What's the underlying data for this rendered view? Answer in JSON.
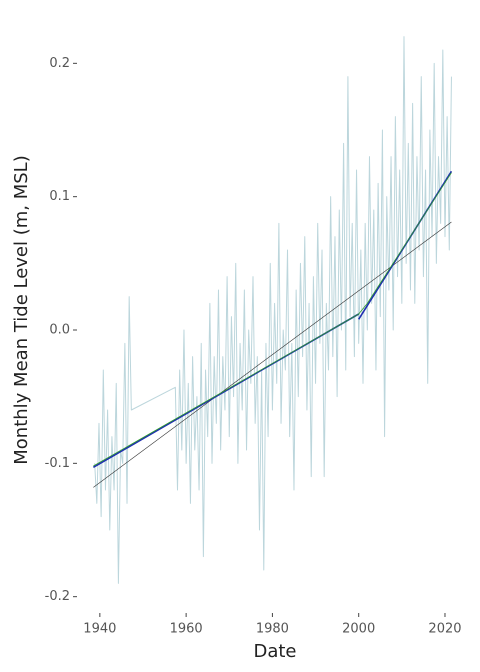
{
  "chart_data": {
    "type": "line",
    "xlabel": "Date",
    "ylabel": "Monthly Mean Tide Level (m, MSL)",
    "xlim": [
      1935.4,
      2025.8
    ],
    "xticks": [
      1940,
      1960,
      1980,
      2000,
      2020
    ],
    "ylim": [
      -0.21,
      0.225
    ],
    "yticks": [
      -0.2,
      -0.1,
      {
        "value": 0,
        "label": "0.0"
      },
      0.1,
      0.2
    ],
    "grid": false,
    "series": [
      {
        "color": "#bcd6dc",
        "width": 1,
        "x": [
          1938.8,
          1939.3,
          1939.8,
          1940.3,
          1940.8,
          1941.3,
          1941.8,
          1942.3,
          1942.8,
          1943.3,
          1943.8,
          1944.3,
          1944.8,
          1945.3,
          1945.8,
          1946.3,
          1946.8,
          1947.3,
          1957.5,
          1958,
          1958.5,
          1959,
          1959.5,
          1960,
          1960.5,
          1961,
          1961.5,
          1962,
          1962.5,
          1963,
          1963.5,
          1964,
          1964.5,
          1965,
          1965.5,
          1966,
          1966.5,
          1967,
          1967.5,
          1968,
          1968.5,
          1969,
          1969.5,
          1970,
          1970.5,
          1971,
          1971.5,
          1972,
          1972.5,
          1973,
          1973.5,
          1974,
          1974.5,
          1975,
          1975.5,
          1976,
          1976.5,
          1977,
          1977.5,
          1978,
          1978.5,
          1979,
          1979.5,
          1980,
          1980.5,
          1981,
          1981.5,
          1982,
          1982.5,
          1983,
          1983.5,
          1984,
          1984.5,
          1985,
          1985.5,
          1986,
          1986.5,
          1987,
          1987.5,
          1988,
          1988.5,
          1989,
          1989.5,
          1990,
          1990.5,
          1991,
          1991.5,
          1992,
          1992.5,
          1993,
          1993.5,
          1994,
          1994.5,
          1995,
          1995.5,
          1996,
          1996.5,
          1997,
          1997.5,
          1998,
          1998.5,
          1999,
          1999.5,
          2000,
          2000.5,
          2001,
          2001.5,
          2002,
          2002.5,
          2003,
          2003.5,
          2004,
          2004.5,
          2005,
          2005.5,
          2006,
          2006.5,
          2007,
          2007.5,
          2008,
          2008.5,
          2009,
          2009.5,
          2010,
          2010.5,
          2011,
          2011.5,
          2012,
          2012.5,
          2013,
          2013.5,
          2014,
          2014.5,
          2015,
          2015.5,
          2016,
          2016.5,
          2017,
          2017.5,
          2018,
          2018.5,
          2019,
          2019.5,
          2020,
          2020.5,
          2021,
          2021.5
        ],
        "values": [
          -0.1,
          -0.13,
          -0.07,
          -0.14,
          -0.03,
          -0.12,
          -0.06,
          -0.15,
          -0.08,
          -0.12,
          -0.04,
          -0.19,
          -0.09,
          -0.1,
          -0.01,
          -0.13,
          0.025,
          -0.06,
          -0.043,
          -0.12,
          -0.03,
          -0.09,
          0.0,
          -0.1,
          -0.04,
          -0.13,
          -0.02,
          -0.09,
          -0.05,
          -0.12,
          -0.01,
          -0.17,
          -0.03,
          -0.08,
          0.02,
          -0.1,
          -0.02,
          -0.07,
          0.03,
          -0.09,
          -0.02,
          -0.06,
          0.04,
          -0.08,
          0.01,
          -0.05,
          0.05,
          -0.1,
          -0.01,
          -0.06,
          0.03,
          -0.09,
          0.0,
          -0.04,
          0.04,
          -0.07,
          -0.02,
          -0.15,
          -0.03,
          -0.18,
          -0.01,
          -0.08,
          0.05,
          -0.06,
          0.02,
          -0.04,
          0.08,
          -0.07,
          0.0,
          -0.03,
          0.06,
          -0.08,
          -0.01,
          -0.12,
          0.03,
          -0.05,
          0.05,
          -0.02,
          0.07,
          -0.06,
          0.02,
          -0.11,
          0.04,
          -0.04,
          0.08,
          -0.01,
          0.06,
          -0.11,
          0.02,
          -0.03,
          0.1,
          -0.02,
          0.07,
          -0.05,
          0.09,
          0.0,
          0.14,
          -0.03,
          0.19,
          0.01,
          0.08,
          -0.02,
          0.12,
          -0.01,
          0.06,
          -0.04,
          0.08,
          0.0,
          0.13,
          0.02,
          0.09,
          -0.03,
          0.11,
          0.01,
          0.15,
          -0.08,
          0.1,
          0.03,
          0.13,
          0.0,
          0.16,
          0.04,
          0.12,
          0.02,
          0.22,
          0.05,
          0.14,
          0.03,
          0.17,
          0.02,
          0.13,
          0.06,
          0.19,
          0.04,
          0.12,
          -0.04,
          0.15,
          0.07,
          0.2,
          0.05,
          0.13,
          0.08,
          0.21,
          0.07,
          0.16,
          0.06,
          0.19
        ]
      },
      {
        "color": "#333333",
        "width": 0.6,
        "x": [
          1938.5,
          2021.5
        ],
        "values": [
          -0.118,
          0.081
        ]
      },
      {
        "color": "#1f2fb0",
        "width": 1.6,
        "x": [
          1938.5,
          2000,
          2000,
          2000,
          2021.5
        ],
        "values": [
          -0.103,
          0.012,
          null,
          0.008,
          0.119
        ]
      },
      {
        "color": "#2e9b2e",
        "width": 0.8,
        "x": [
          1938.5,
          2000,
          2002,
          2021.5
        ],
        "values": [
          -0.102,
          0.012,
          0.02,
          0.118
        ]
      }
    ]
  }
}
